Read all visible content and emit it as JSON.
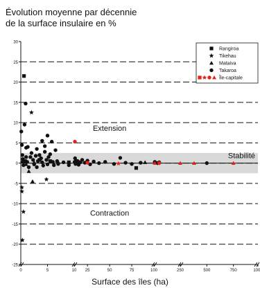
{
  "chart_data": {
    "type": "scatter",
    "title": [
      "Évolution moyenne par décennie",
      "de la surface insulaire en %"
    ],
    "xlabel": "Surface des îles (ha)",
    "ylabel": "",
    "ylim": [
      -25,
      30
    ],
    "yticks": [
      -25,
      -20,
      -15,
      -10,
      -5,
      0,
      5,
      10,
      15,
      20,
      25,
      30
    ],
    "xscale": "piecewise",
    "xticks": [
      0,
      5,
      10,
      25,
      50,
      75,
      100,
      250,
      500,
      750,
      1000
    ],
    "xbreaks": [
      [
        0,
        0
      ],
      [
        10,
        10
      ],
      [
        100,
        100
      ],
      [
        250,
        250
      ],
      [
        1000,
        1000
      ]
    ],
    "grid": "dashed-horizontal",
    "stability_band": [
      -2.5,
      2.5
    ],
    "annotations": [
      {
        "text": "Extension",
        "x": 50,
        "y": 8
      },
      {
        "text": "Stabilité",
        "x": 1000,
        "y": 1.2
      },
      {
        "text": "Contraction",
        "x": 50,
        "y": -13
      }
    ],
    "legend": {
      "position": "top-right",
      "entries": [
        {
          "label": "Rangiroa",
          "marker": "square"
        },
        {
          "label": "Tikehau",
          "marker": "star"
        },
        {
          "label": "Mataiva",
          "marker": "triangle"
        },
        {
          "label": "Takaroa",
          "marker": "circle"
        },
        {
          "label": "Île-capitale",
          "marker": "all-red"
        }
      ]
    },
    "colors": {
      "normal": "#111111",
      "capital": "#e2231a",
      "band": "#d9d9d9"
    },
    "series": [
      {
        "name": "Rangiroa",
        "marker": "square",
        "points": [
          [
            0.6,
            21.5
          ],
          [
            0.8,
            0.5
          ],
          [
            3.5,
            0.8
          ],
          [
            5.5,
            0.5
          ],
          [
            9,
            0.2
          ],
          [
            80,
            -1.2
          ]
        ]
      },
      {
        "name": "Tikehau",
        "marker": "star",
        "points": [
          [
            0.2,
            -6
          ],
          [
            0.2,
            -7
          ],
          [
            0.3,
            -19
          ],
          [
            0.5,
            -12
          ],
          [
            2,
            12.5
          ],
          [
            4.8,
            -4
          ]
        ]
      },
      {
        "name": "Mataiva",
        "marker": "triangle",
        "points": [
          [
            0.3,
            0.5
          ],
          [
            1,
            -0.3
          ],
          [
            1.5,
            -2
          ],
          [
            2.2,
            -4.5
          ],
          [
            2.5,
            0.2
          ],
          [
            7,
            0.3
          ],
          [
            90,
            0.2
          ]
        ]
      },
      {
        "name": "Takaroa",
        "marker": "circle",
        "points": [
          [
            0.1,
            7.8
          ],
          [
            0.2,
            4.5
          ],
          [
            0.3,
            2.0
          ],
          [
            0.4,
            1.0
          ],
          [
            0.5,
            -0.5
          ],
          [
            0.7,
            9.5
          ],
          [
            0.9,
            14.7
          ],
          [
            1.0,
            3.8
          ],
          [
            1.0,
            1.5
          ],
          [
            1.2,
            0.3
          ],
          [
            1.3,
            4.0
          ],
          [
            1.5,
            -1.0
          ],
          [
            1.8,
            1.5
          ],
          [
            2.0,
            2.5
          ],
          [
            2.3,
            0.8
          ],
          [
            2.5,
            -0.3
          ],
          [
            2.8,
            1.8
          ],
          [
            3.0,
            3.5
          ],
          [
            3.0,
            -1.0
          ],
          [
            3.2,
            0.5
          ],
          [
            3.5,
            2.0
          ],
          [
            3.8,
            1.2
          ],
          [
            4.0,
            5.5
          ],
          [
            4.0,
            0.2
          ],
          [
            4.2,
            -0.6
          ],
          [
            4.5,
            2.8
          ],
          [
            4.5,
            4.2
          ],
          [
            4.8,
            0.8
          ],
          [
            5.0,
            6.8
          ],
          [
            5.0,
            -0.3
          ],
          [
            5.2,
            1.5
          ],
          [
            5.5,
            2.2
          ],
          [
            5.8,
            5.3
          ],
          [
            6.0,
            0.3
          ],
          [
            6.2,
            -0.5
          ],
          [
            6.5,
            3.2
          ],
          [
            6.8,
            0.5
          ],
          [
            7.0,
            -0.2
          ],
          [
            8.0,
            0.2
          ],
          [
            9.0,
            -0.5
          ],
          [
            10.5,
            0.3
          ],
          [
            11.0,
            1.2
          ],
          [
            11.5,
            -0.2
          ],
          [
            12.0,
            0.6
          ],
          [
            13.0,
            0.1
          ],
          [
            14.0,
            0.5
          ],
          [
            15.0,
            -0.4
          ],
          [
            17.0,
            0.2
          ],
          [
            19.0,
            0.8
          ],
          [
            22.0,
            0.1
          ],
          [
            25.0,
            0.6
          ],
          [
            28.0,
            -0.3
          ],
          [
            32.0,
            0.4
          ],
          [
            38.0,
            0.0
          ],
          [
            45.0,
            0.3
          ],
          [
            55.0,
            -0.2
          ],
          [
            62.0,
            1.3
          ],
          [
            68.0,
            0.1
          ],
          [
            75.0,
            -0.2
          ],
          [
            85.0,
            0.1
          ],
          [
            105.0,
            0.3
          ],
          [
            120.0,
            0.0
          ],
          [
            130.0,
            0.2
          ],
          [
            500.0,
            0.0
          ]
        ]
      },
      {
        "name": "Île-capitale",
        "marker": "red",
        "points": [
          {
            "x": 10.8,
            "y": 5.3,
            "marker": "circle"
          },
          {
            "x": 25.0,
            "y": 0.1,
            "marker": "circle"
          },
          {
            "x": 60.0,
            "y": -0.1,
            "marker": "star"
          },
          {
            "x": 105.0,
            "y": 0.0,
            "marker": "triangle"
          },
          {
            "x": 130.0,
            "y": 0.0,
            "marker": "circle"
          },
          {
            "x": 250.0,
            "y": 0.0,
            "marker": "triangle"
          },
          {
            "x": 380.0,
            "y": 0.0,
            "marker": "triangle"
          },
          {
            "x": 750.0,
            "y": 0.0,
            "marker": "triangle"
          }
        ]
      }
    ]
  }
}
